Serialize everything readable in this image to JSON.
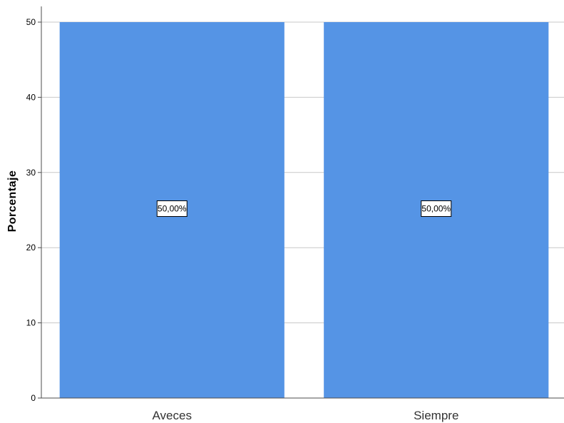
{
  "chart_data": {
    "type": "bar",
    "categories": [
      "Aveces",
      "Siempre"
    ],
    "values": [
      50,
      50
    ],
    "data_labels": [
      "50,00%",
      "50,00%"
    ],
    "ylabel": "Porcentaje",
    "ylim": [
      0,
      50
    ],
    "yticks": [
      0,
      10,
      20,
      30,
      40,
      50
    ],
    "grid": true,
    "bar_color": "#5594e5",
    "grid_color": "#c8c8c8",
    "axis_color": "#4d4d4d"
  }
}
